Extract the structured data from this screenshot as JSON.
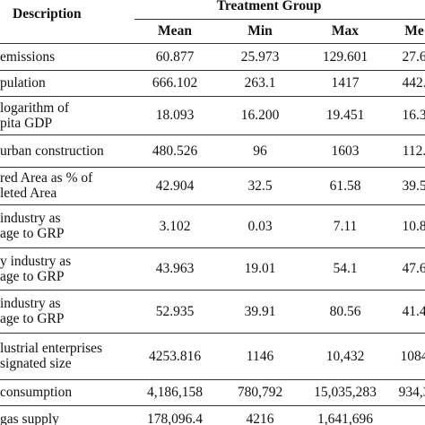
{
  "header": {
    "group": "Treatment Group",
    "description": "Description",
    "columns": [
      "Mean",
      "Min",
      "Max",
      "Me"
    ]
  },
  "rows": [
    {
      "label": [
        "emissions"
      ],
      "cells": [
        "60.877",
        "25.973",
        "129.601",
        "27.6"
      ]
    },
    {
      "label": [
        "pulation"
      ],
      "cells": [
        "666.102",
        "263.1",
        "1417",
        "442."
      ]
    },
    {
      "label": [
        "logarithm of",
        "pita GDP"
      ],
      "cells": [
        "18.093",
        "16.200",
        "19.451",
        "16.3"
      ]
    },
    {
      "label": [
        "urban construction"
      ],
      "cells": [
        "480.526",
        "96",
        "1603",
        "112."
      ]
    },
    {
      "label": [
        "red Area as % of",
        "leted Area"
      ],
      "cells": [
        "42.904",
        "32.5",
        "61.58",
        "39.5"
      ]
    },
    {
      "label": [
        "industry as",
        "age to GRP"
      ],
      "cells": [
        "3.102",
        "0.03",
        "7.11",
        "10.8"
      ]
    },
    {
      "label": [
        "y industry as",
        "age to GRP"
      ],
      "cells": [
        "43.963",
        "19.01",
        "54.1",
        "47.6"
      ]
    },
    {
      "label": [
        "industry as",
        "age to GRP"
      ],
      "cells": [
        "52.935",
        "39.91",
        "80.56",
        "41.4"
      ]
    },
    {
      "label": [
        "lustrial enterprises",
        "signated size"
      ],
      "cells": [
        "4253.816",
        "1146",
        "10,432",
        "1084"
      ]
    },
    {
      "label": [
        "consumption"
      ],
      "cells": [
        "4,186,158",
        "780,792",
        "15,035,283",
        "934,3"
      ]
    },
    {
      "label": [
        "gas supply"
      ],
      "cells": [
        "178,096.4",
        "4216",
        "1,641,696"
      ]
    }
  ]
}
